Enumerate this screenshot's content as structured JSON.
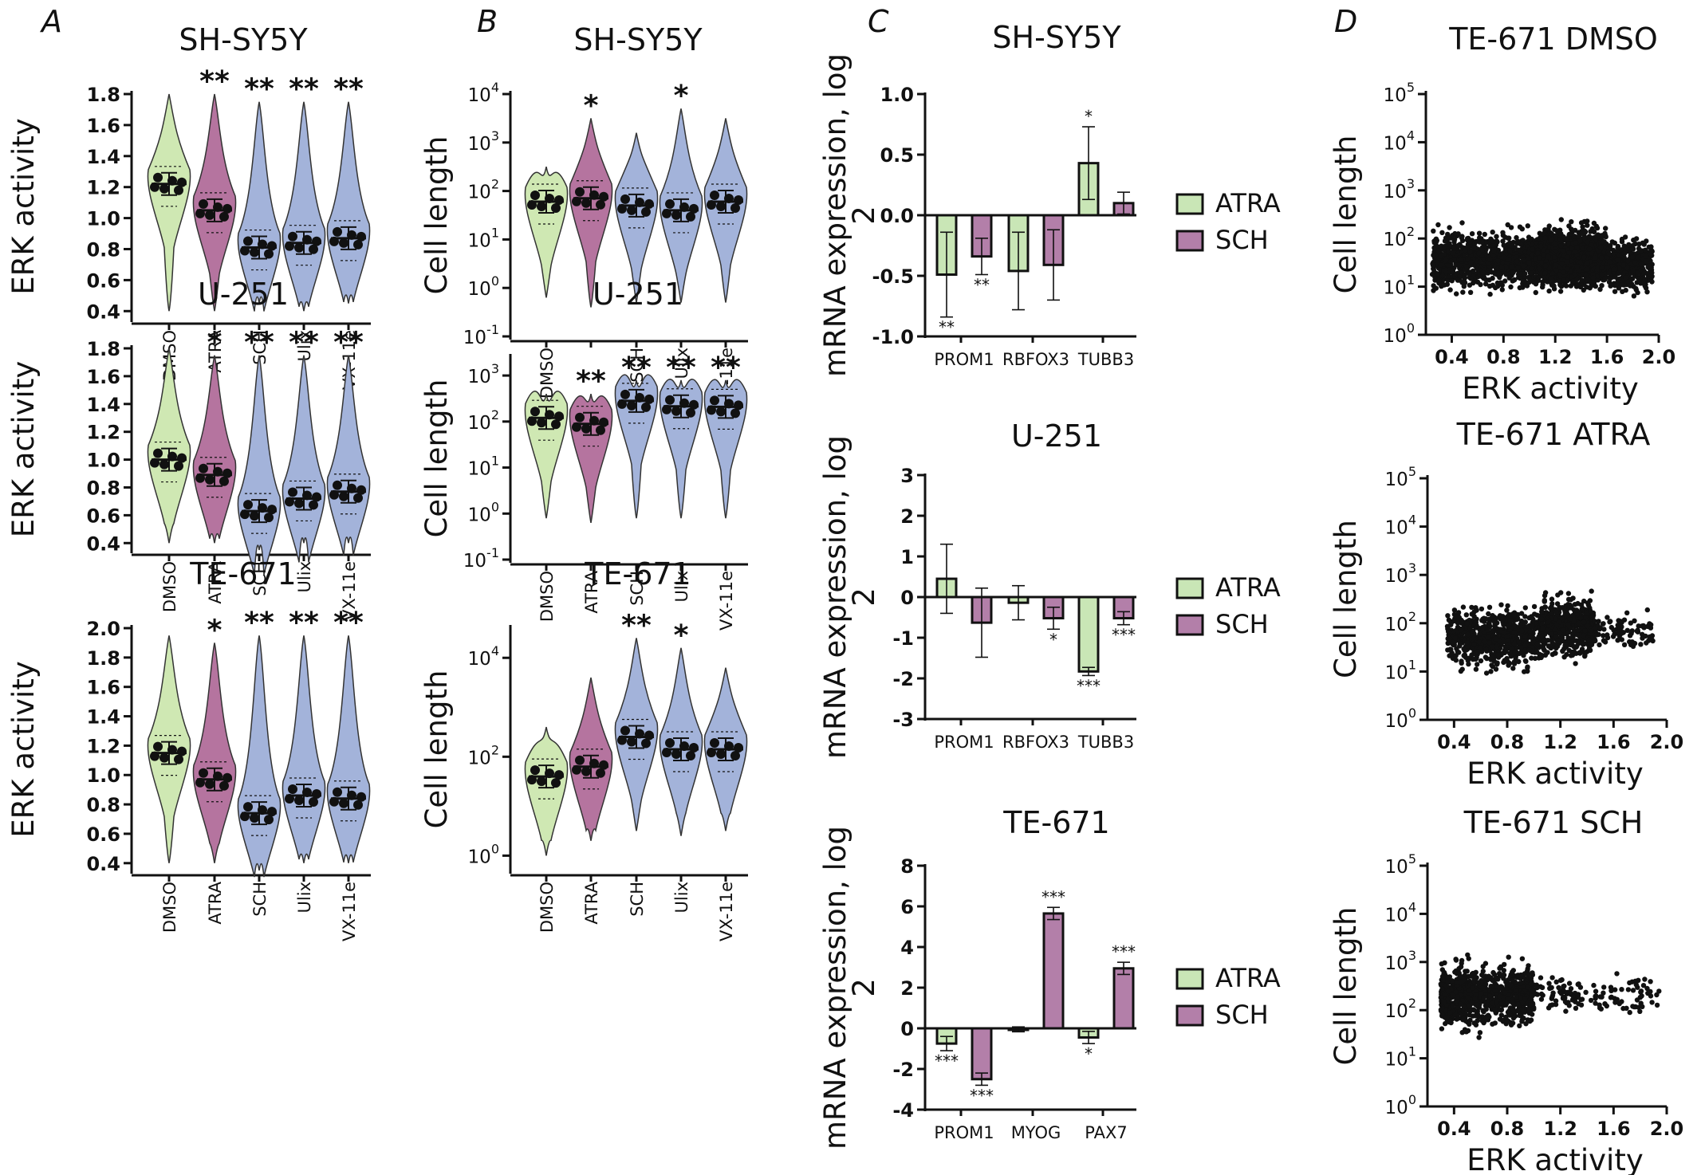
{
  "panel_labels": [
    "A",
    "B",
    "C",
    "D"
  ],
  "colors": {
    "green": "#cfe8b3",
    "purple": "#b5749f",
    "blue": "#a3b3da",
    "bar_green": "#c9e6b6",
    "bar_purple": "#b37fa9"
  },
  "chart_data": [
    {
      "panel": "A",
      "type": "violin",
      "title": "SH-SY5Y",
      "ylabel": "ERK activity",
      "xlabel": "",
      "ylim": [
        0.35,
        1.8
      ],
      "yticks": [
        0.4,
        0.6,
        0.8,
        1.0,
        1.2,
        1.4,
        1.6,
        1.8
      ],
      "ytick_labels": [
        "0.4",
        "0.6",
        "0.8",
        "1.0",
        "1.2",
        "1.4",
        "1.6",
        "1.8"
      ],
      "categories": [
        "DMSO",
        "ATRA",
        "SCH",
        "Ulix",
        "VX-11e"
      ],
      "fills": [
        "green",
        "purple",
        "blue",
        "blue",
        "blue"
      ],
      "min": [
        0.4,
        0.4,
        0.45,
        0.4,
        0.45
      ],
      "max": [
        1.8,
        1.8,
        1.75,
        1.75,
        1.75
      ],
      "median": [
        1.22,
        1.05,
        0.81,
        0.84,
        0.87
      ],
      "sig": [
        "",
        "**",
        "**",
        "**",
        "**"
      ]
    },
    {
      "panel": "A",
      "type": "violin",
      "title": "U-251",
      "ylabel": "ERK activity",
      "xlabel": "",
      "ylim": [
        0.35,
        1.8
      ],
      "yticks": [
        0.4,
        0.6,
        0.8,
        1.0,
        1.2,
        1.4,
        1.6,
        1.8
      ],
      "ytick_labels": [
        "0.4",
        "0.6",
        "0.8",
        "1.0",
        "1.2",
        "1.4",
        "1.6",
        "1.8"
      ],
      "categories": [
        "DMSO",
        "ATRA",
        "SCH",
        "Ulix",
        "VX-11e"
      ],
      "fills": [
        "green",
        "purple",
        "blue",
        "blue",
        "blue"
      ],
      "min": [
        0.4,
        0.4,
        0.35,
        0.4,
        0.4
      ],
      "max": [
        1.8,
        1.75,
        1.75,
        1.75,
        1.75
      ],
      "median": [
        1.0,
        0.89,
        0.63,
        0.72,
        0.77
      ],
      "sig": [
        "",
        "*",
        "**",
        "**",
        "**"
      ]
    },
    {
      "panel": "A",
      "type": "violin",
      "title": "TE-671",
      "ylabel": "ERK activity",
      "xlabel": "",
      "ylim": [
        0.35,
        2.0
      ],
      "yticks": [
        0.4,
        0.6,
        0.8,
        1.0,
        1.2,
        1.4,
        1.6,
        1.8,
        2.0
      ],
      "ytick_labels": [
        "0.4",
        "0.6",
        "0.8",
        "1.0",
        "1.2",
        "1.4",
        "1.6",
        "1.8",
        "2.0"
      ],
      "categories": [
        "DMSO",
        "ATRA",
        "SCH",
        "Ulix",
        "VX-11e"
      ],
      "fills": [
        "green",
        "purple",
        "blue",
        "blue",
        "blue"
      ],
      "min": [
        0.4,
        0.4,
        0.35,
        0.4,
        0.4
      ],
      "max": [
        1.95,
        1.9,
        1.95,
        1.95,
        1.95
      ],
      "median": [
        1.15,
        0.97,
        0.74,
        0.86,
        0.84
      ],
      "sig": [
        "",
        "*",
        "**",
        "**",
        "**"
      ]
    },
    {
      "panel": "B",
      "type": "violin",
      "scale": "log",
      "title": "SH-SY5Y",
      "ylabel": "Cell length",
      "xlabel": "",
      "ylim": [
        -1,
        4
      ],
      "yticks": [
        -1,
        0,
        1,
        2,
        3,
        4
      ],
      "ytick_base": "10",
      "ytick_exps": [
        "-1",
        "0",
        "1",
        "2",
        "3",
        "4"
      ],
      "categories": [
        "DMSO",
        "",
        "SCH",
        "Ulix",
        "VX-11e"
      ],
      "fills": [
        "green",
        "purple",
        "blue",
        "blue",
        "blue"
      ],
      "min": [
        -0.2,
        -0.4,
        -0.3,
        -0.3,
        -0.3
      ],
      "max": [
        2.5,
        3.5,
        3.2,
        3.7,
        3.5
      ],
      "median": [
        1.78,
        1.85,
        1.7,
        1.6,
        1.78
      ],
      "sig": [
        "",
        "*",
        "",
        "*",
        ""
      ]
    },
    {
      "panel": "B",
      "type": "violin",
      "scale": "log",
      "title": "U-251",
      "ylabel": "Cell length",
      "xlabel": "",
      "ylim": [
        -1,
        3.4
      ],
      "yticks": [
        -1,
        0,
        1,
        2,
        3
      ],
      "ytick_base": "10",
      "ytick_exps": [
        "-1",
        "0",
        "1",
        "2",
        "3"
      ],
      "categories": [
        "DMSO",
        "ATRA",
        "SCH",
        "Ulix",
        "VX-11e"
      ],
      "fills": [
        "green",
        "purple",
        "blue",
        "blue",
        "blue"
      ],
      "min": [
        -0.1,
        -0.2,
        -0.1,
        -0.1,
        -0.1
      ],
      "max": [
        2.6,
        2.6,
        2.9,
        2.9,
        2.9
      ],
      "median": [
        2.08,
        1.95,
        2.45,
        2.33,
        2.32
      ],
      "sig": [
        "",
        "**",
        "**",
        "**",
        "**"
      ]
    },
    {
      "panel": "B",
      "type": "violin",
      "scale": "log",
      "title": "TE-671",
      "ylabel": "Cell length",
      "xlabel": "",
      "ylim": [
        -0.3,
        4.6
      ],
      "yticks": [
        0,
        2,
        4
      ],
      "ytick_base": "10",
      "ytick_exps": [
        "0",
        "2",
        "4"
      ],
      "categories": [
        "DMSO",
        "ATRA",
        "SCH",
        "Ulix",
        "VX-11e"
      ],
      "fills": [
        "green",
        "purple",
        "blue",
        "blue",
        "blue"
      ],
      "min": [
        0.0,
        0.3,
        0.5,
        0.4,
        0.5
      ],
      "max": [
        2.6,
        3.6,
        4.4,
        4.2,
        3.8
      ],
      "median": [
        1.6,
        1.8,
        2.4,
        2.15,
        2.15
      ],
      "sig": [
        "",
        "",
        "**",
        "*",
        ""
      ]
    },
    {
      "panel": "C",
      "type": "bar",
      "title": "SH-SY5Y",
      "ylabel": "mRNA expression, log",
      "ylabel_sub": "2",
      "xlabel": "",
      "ylim": [
        -1.0,
        1.0
      ],
      "yticks": [
        -1.0,
        -0.5,
        0.0,
        0.5,
        1.0
      ],
      "ytick_labels": [
        "-1.0",
        "-0.5",
        "0.0",
        "0.5",
        "1.0"
      ],
      "categories": [
        "PROM1",
        "RBFOX3",
        "TUBB3"
      ],
      "series": [
        {
          "name": "ATRA",
          "values": [
            -0.49,
            -0.46,
            0.43
          ],
          "err": [
            0.35,
            0.32,
            0.3
          ],
          "sig": [
            "**",
            "",
            "*"
          ]
        },
        {
          "name": "SCH",
          "values": [
            -0.34,
            -0.41,
            0.1
          ],
          "err": [
            0.15,
            0.29,
            0.09
          ],
          "sig": [
            "**",
            "",
            ""
          ]
        }
      ]
    },
    {
      "panel": "C",
      "type": "bar",
      "title": "U-251",
      "ylabel": "mRNA expression, log",
      "ylabel_sub": "2",
      "xlabel": "",
      "ylim": [
        -3,
        3
      ],
      "yticks": [
        -3,
        -2,
        -1,
        0,
        1,
        2,
        3
      ],
      "ytick_labels": [
        "-3",
        "-2",
        "-1",
        "0",
        "1",
        "2",
        "3"
      ],
      "categories": [
        "PROM1",
        "RBFOX3",
        "TUBB3"
      ],
      "series": [
        {
          "name": "ATRA",
          "values": [
            0.45,
            -0.14,
            -1.83
          ],
          "err": [
            0.85,
            0.42,
            0.1
          ],
          "sig": [
            "",
            "",
            "***"
          ]
        },
        {
          "name": "SCH",
          "values": [
            -0.63,
            -0.52,
            -0.52
          ],
          "err": [
            0.85,
            0.27,
            0.16
          ],
          "sig": [
            "",
            "*",
            "***"
          ]
        }
      ]
    },
    {
      "panel": "C",
      "type": "bar",
      "title": "TE-671",
      "ylabel": "mRNA expression, log",
      "ylabel_sub": "2",
      "xlabel": "",
      "ylim": [
        -4,
        8
      ],
      "yticks": [
        -4,
        -2,
        0,
        2,
        4,
        6,
        8
      ],
      "ytick_labels": [
        "-4",
        "-2",
        "0",
        "2",
        "4",
        "6",
        "8"
      ],
      "categories": [
        "PROM1",
        "MYOG",
        "PAX7"
      ],
      "series": [
        {
          "name": "ATRA",
          "values": [
            -0.75,
            -0.05,
            -0.45
          ],
          "err": [
            0.35,
            0.12,
            0.3
          ],
          "sig": [
            "***",
            "",
            "*"
          ]
        },
        {
          "name": "SCH",
          "values": [
            -2.5,
            5.65,
            2.95
          ],
          "err": [
            0.3,
            0.3,
            0.3
          ],
          "sig": [
            "***",
            "***",
            "***"
          ]
        }
      ]
    },
    {
      "panel": "D",
      "type": "scatter",
      "scale": "log-y",
      "title": "TE-671 DMSO",
      "xlabel": "ERK activity",
      "ylabel": "Cell length",
      "xlim": [
        0.2,
        2.0
      ],
      "xticks": [
        0.4,
        0.8,
        1.2,
        1.6,
        2.0
      ],
      "xtick_labels": [
        "0.4",
        "0.8",
        "1.2",
        "1.6",
        "2.0"
      ],
      "ylim": [
        0,
        5
      ],
      "yticks": [
        0,
        1,
        2,
        3,
        4,
        5
      ],
      "ytick_base": "10",
      "ytick_exps": [
        "0",
        "1",
        "2",
        "3",
        "4",
        "5"
      ],
      "clusters": [
        {
          "x": [
            0.25,
            1.05
          ],
          "y_center": 1.55,
          "y_spread": 0.55,
          "n": 900
        },
        {
          "x": [
            1.05,
            1.6
          ],
          "y_center": 1.6,
          "y_spread": 0.55,
          "n": 1400
        },
        {
          "x": [
            1.6,
            1.95
          ],
          "y_center": 1.45,
          "y_spread": 0.5,
          "n": 380
        }
      ]
    },
    {
      "panel": "D",
      "type": "scatter",
      "scale": "log-y",
      "title": "TE-671 ATRA",
      "xlabel": "ERK activity",
      "ylabel": "Cell length",
      "xlim": [
        0.2,
        2.0
      ],
      "xticks": [
        0.4,
        0.8,
        1.2,
        1.6,
        2.0
      ],
      "xtick_labels": [
        "0.4",
        "0.8",
        "1.2",
        "1.6",
        "2.0"
      ],
      "ylim": [
        0,
        5
      ],
      "yticks": [
        0,
        1,
        2,
        3,
        4,
        5
      ],
      "ytick_base": "10",
      "ytick_exps": [
        "0",
        "1",
        "2",
        "3",
        "4",
        "5"
      ],
      "clusters": [
        {
          "x": [
            0.35,
            1.05
          ],
          "y_center": 1.7,
          "y_spread": 0.55,
          "n": 700
        },
        {
          "x": [
            1.05,
            1.45
          ],
          "y_center": 1.9,
          "y_spread": 0.55,
          "n": 450
        },
        {
          "x": [
            1.45,
            1.9
          ],
          "y_center": 1.85,
          "y_spread": 0.35,
          "n": 90
        }
      ]
    },
    {
      "panel": "D",
      "type": "scatter",
      "scale": "log-y",
      "title": "TE-671 SCH",
      "xlabel": "ERK activity",
      "ylabel": "Cell length",
      "xlim": [
        0.2,
        2.0
      ],
      "xticks": [
        0.4,
        0.8,
        1.2,
        1.6,
        2.0
      ],
      "xtick_labels": [
        "0.4",
        "0.8",
        "1.2",
        "1.6",
        "2.0"
      ],
      "ylim": [
        0,
        5
      ],
      "yticks": [
        0,
        1,
        2,
        3,
        4,
        5
      ],
      "ytick_base": "10",
      "ytick_exps": [
        "0",
        "1",
        "2",
        "3",
        "4",
        "5"
      ],
      "clusters": [
        {
          "x": [
            0.3,
            1.0
          ],
          "y_center": 2.3,
          "y_spread": 0.6,
          "n": 850
        },
        {
          "x": [
            1.0,
            1.95
          ],
          "y_center": 2.35,
          "y_spread": 0.35,
          "n": 130
        }
      ]
    }
  ]
}
